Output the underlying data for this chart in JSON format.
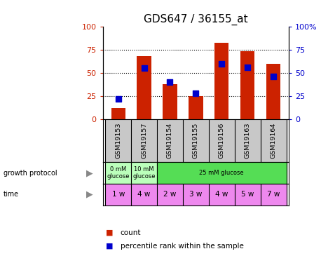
{
  "title": "GDS647 / 36155_at",
  "samples": [
    "GSM19153",
    "GSM19157",
    "GSM19154",
    "GSM19155",
    "GSM19156",
    "GSM19163",
    "GSM19164"
  ],
  "counts": [
    12,
    68,
    38,
    25,
    82,
    73,
    60
  ],
  "percentiles": [
    22,
    55,
    40,
    28,
    60,
    56,
    46
  ],
  "ylim_left": [
    0,
    100
  ],
  "ylim_right": [
    0,
    100
  ],
  "yticks": [
    0,
    25,
    50,
    75,
    100
  ],
  "bar_color": "#cc2200",
  "square_color": "#0000cc",
  "grid_color": "black",
  "growth_protocol_labels": [
    "0 mM\nglucose",
    "10 mM\nglucose",
    "25 mM glucose"
  ],
  "growth_protocol_colors": [
    "#bbffbb",
    "#bbffbb",
    "#55dd55"
  ],
  "time_labels": [
    "1 w",
    "4 w",
    "2 w",
    "3 w",
    "4 w",
    "5 w",
    "7 w"
  ],
  "time_color": "#ee88ee",
  "sample_bg_color": "#c8c8c8",
  "left_label_color": "#cc2200",
  "right_label_color": "#0000cc",
  "title_color": "black",
  "title_fontsize": 11,
  "tick_fontsize": 8,
  "legend_square_color_count": "#cc2200",
  "legend_square_color_pct": "#0000cc"
}
